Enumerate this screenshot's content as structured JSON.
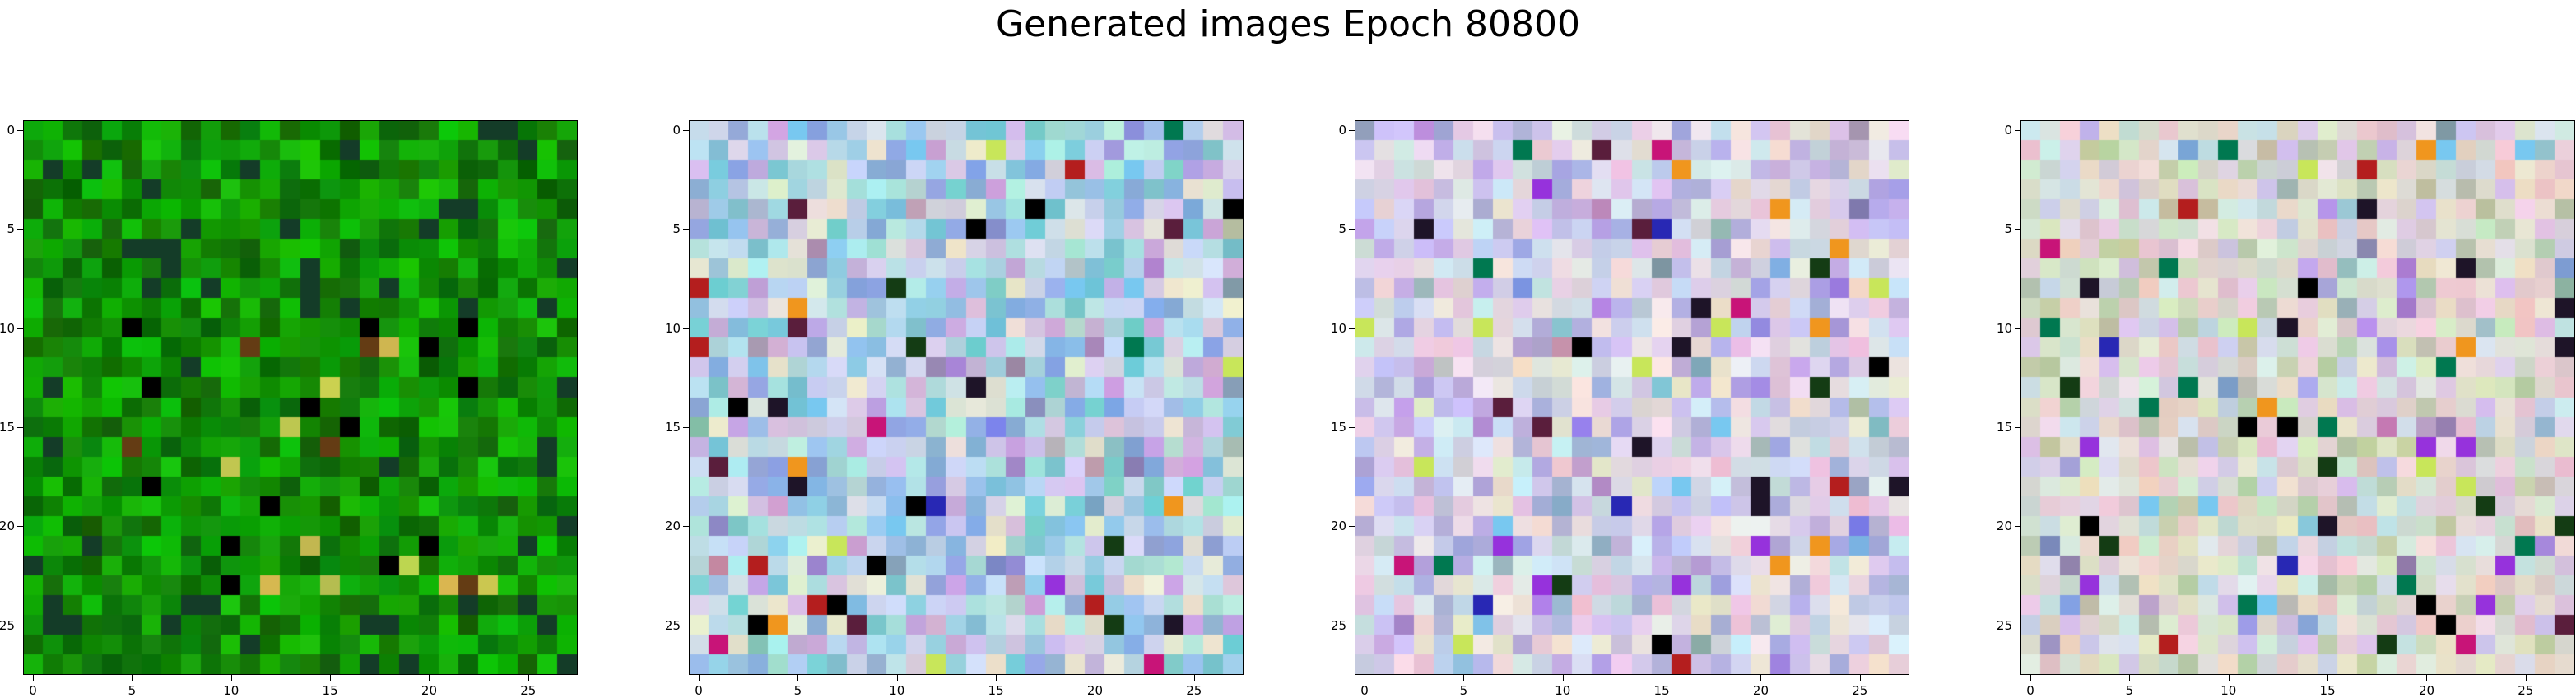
{
  "figure": {
    "title": "Generated images Epoch 80800"
  },
  "chart_data": [
    {
      "type": "heatmap",
      "panel": 1,
      "grid_size": 28,
      "palette": "green",
      "xticks": [
        "0",
        "5",
        "10",
        "15",
        "20",
        "25"
      ],
      "yticks": [
        "0",
        "5",
        "10",
        "15",
        "20",
        "25"
      ],
      "xlim": [
        -0.5,
        27.5
      ],
      "ylim": [
        27.5,
        -0.5
      ]
    },
    {
      "type": "heatmap",
      "panel": 2,
      "grid_size": 28,
      "palette": "pastel-cyan",
      "xticks": [
        "0",
        "5",
        "10",
        "15",
        "20",
        "25"
      ],
      "yticks": [
        "0",
        "5",
        "10",
        "15",
        "20",
        "25"
      ],
      "xlim": [
        -0.5,
        27.5
      ],
      "ylim": [
        27.5,
        -0.5
      ]
    },
    {
      "type": "heatmap",
      "panel": 3,
      "grid_size": 28,
      "palette": "pastel-lavender",
      "xticks": [
        "0",
        "5",
        "10",
        "15",
        "20",
        "25"
      ],
      "yticks": [
        "0",
        "5",
        "10",
        "15",
        "20",
        "25"
      ],
      "xlim": [
        -0.5,
        27.5
      ],
      "ylim": [
        27.5,
        -0.5
      ]
    },
    {
      "type": "heatmap",
      "panel": 4,
      "grid_size": 28,
      "palette": "pastel-mixed",
      "xticks": [
        "0",
        "5",
        "10",
        "15",
        "20",
        "25"
      ],
      "yticks": [
        "0",
        "5",
        "10",
        "15",
        "20",
        "25"
      ],
      "xlim": [
        -0.5,
        27.5
      ],
      "ylim": [
        27.5,
        -0.5
      ]
    }
  ]
}
